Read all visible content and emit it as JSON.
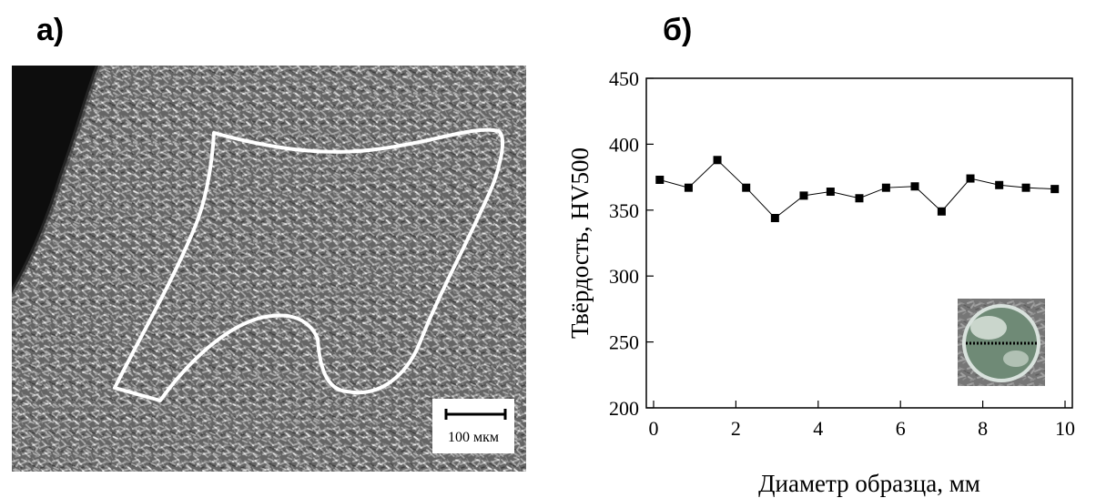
{
  "panels": {
    "a_label": "а)",
    "b_label": "б)"
  },
  "micrograph": {
    "scale_bar_label": "100 мкм"
  },
  "chart_data": {
    "type": "line",
    "title": "",
    "xlabel": "Диаметр образца, мм",
    "ylabel": "Твёрдость, HV500",
    "xlim": [
      0,
      10
    ],
    "ylim": [
      200,
      450
    ],
    "x_ticks": [
      0,
      2,
      4,
      6,
      8,
      10
    ],
    "y_ticks": [
      200,
      250,
      300,
      350,
      400,
      450
    ],
    "grid": false,
    "marker": "square",
    "series": [
      {
        "x": [
          0.15,
          0.85,
          1.55,
          2.25,
          2.95,
          3.65,
          4.3,
          5.0,
          5.65,
          6.35,
          7.0,
          7.7,
          8.4,
          9.05,
          9.75
        ],
        "y": [
          373,
          367,
          388,
          367,
          344,
          361,
          364,
          359,
          367,
          368,
          349,
          374,
          369,
          367,
          366
        ]
      }
    ],
    "inset": "photo of circular sample cross-section with a dotted line of indentations across its diameter"
  }
}
